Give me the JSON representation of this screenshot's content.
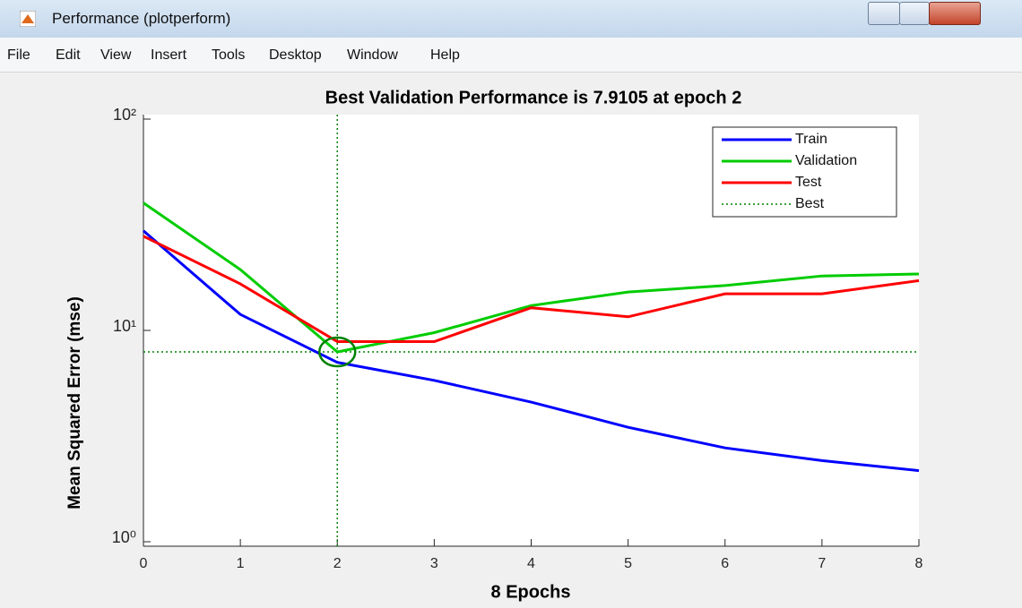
{
  "window": {
    "title": "Performance (plotperform)",
    "menu": [
      "File",
      "Edit",
      "View",
      "Insert",
      "Tools",
      "Desktop",
      "Window",
      "Help"
    ]
  },
  "chart_data": {
    "type": "line",
    "title": "Best Validation Performance is 7.9105 at epoch 2",
    "xlabel": "8 Epochs",
    "ylabel": "Mean Squared Error  (mse)",
    "x": [
      0,
      1,
      2,
      3,
      4,
      5,
      6,
      7,
      8
    ],
    "series": [
      {
        "name": "Train",
        "color": "#0000ff",
        "values": [
          29.6,
          11.9,
          7.06,
          5.8,
          4.58,
          3.48,
          2.78,
          2.42,
          2.17
        ]
      },
      {
        "name": "Validation",
        "color": "#00cc00",
        "values": [
          40.1,
          19.4,
          7.9105,
          9.76,
          13.1,
          15.2,
          16.3,
          18.1,
          18.5
        ]
      },
      {
        "name": "Test",
        "color": "#ff0000",
        "values": [
          27.9,
          16.6,
          8.85,
          8.85,
          12.8,
          11.6,
          14.9,
          14.9,
          17.2
        ]
      }
    ],
    "best": {
      "name": "Best",
      "color": "#008000",
      "epoch": 2,
      "value": 7.9105
    },
    "xlim": [
      0,
      8
    ],
    "xticks": [
      0,
      1,
      2,
      3,
      4,
      5,
      6,
      7,
      8
    ],
    "ylim": [
      1,
      100
    ],
    "log_y": true,
    "yticks": [
      {
        "value": 1,
        "label": "10⁰"
      },
      {
        "value": 10,
        "label": "10¹"
      },
      {
        "value": 100,
        "label": "10²"
      }
    ],
    "legend": "upper right"
  }
}
